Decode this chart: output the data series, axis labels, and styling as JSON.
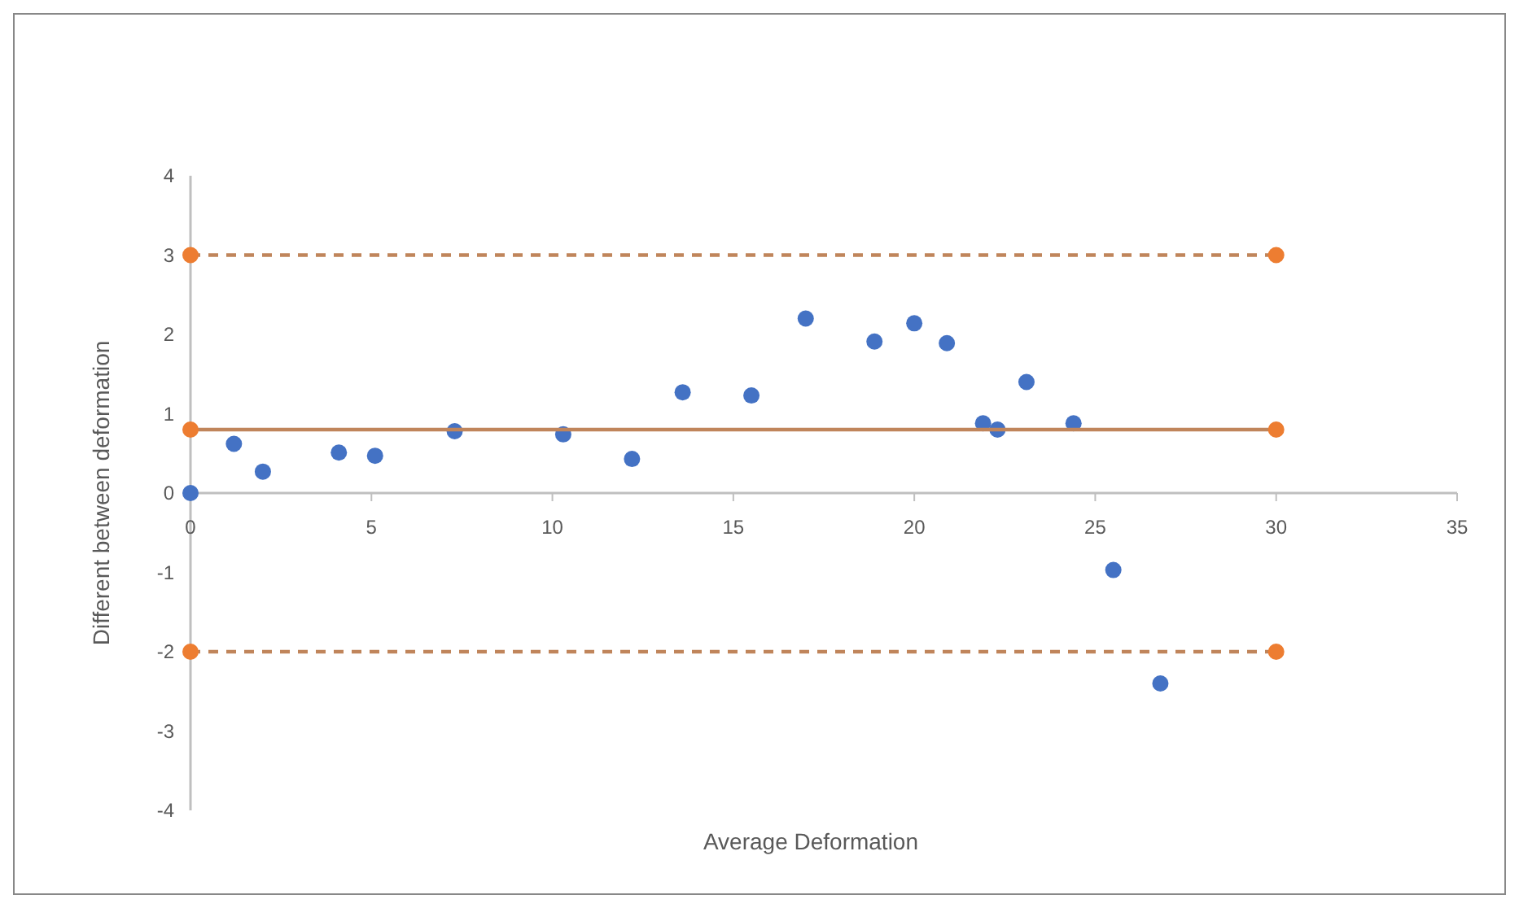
{
  "chart_data": {
    "type": "scatter",
    "xlabel": "Average Deformation",
    "ylabel": "Different between deformation",
    "xlim": [
      0,
      35
    ],
    "xticks": [
      0,
      5,
      10,
      15,
      20,
      25,
      30,
      35
    ],
    "ylim": [
      -4,
      4
    ],
    "yticks": [
      -4,
      -3,
      -2,
      -1,
      0,
      1,
      2,
      3,
      4
    ],
    "grid": false,
    "marker": "circle",
    "series": [
      {
        "color": "#4472c4",
        "x": [
          0,
          1.2,
          2.0,
          4.1,
          5.1,
          7.3,
          10.3,
          12.2,
          13.6,
          15.5,
          17.0,
          18.9,
          20.0,
          20.9,
          21.9,
          22.3,
          23.1,
          24.4,
          25.5,
          26.8
        ],
        "values": [
          0,
          0.62,
          0.27,
          0.51,
          0.47,
          0.78,
          0.74,
          0.43,
          1.27,
          1.23,
          2.2,
          1.91,
          2.14,
          1.89,
          0.88,
          0.8,
          1.4,
          0.88,
          -0.97,
          -2.4
        ]
      },
      {
        "type": "line",
        "color": "#c0855b",
        "x": [
          0,
          30
        ],
        "values": [
          0.8,
          0.8
        ],
        "line_style": "solid"
      },
      {
        "type": "line",
        "color": "#c0855b",
        "x": [
          0,
          30
        ],
        "values": [
          3,
          3
        ],
        "line_style": "dashed"
      },
      {
        "type": "line",
        "color": "#c0855b",
        "x": [
          0,
          30
        ],
        "values": [
          -2,
          -2
        ],
        "line_style": "dashed"
      }
    ]
  }
}
